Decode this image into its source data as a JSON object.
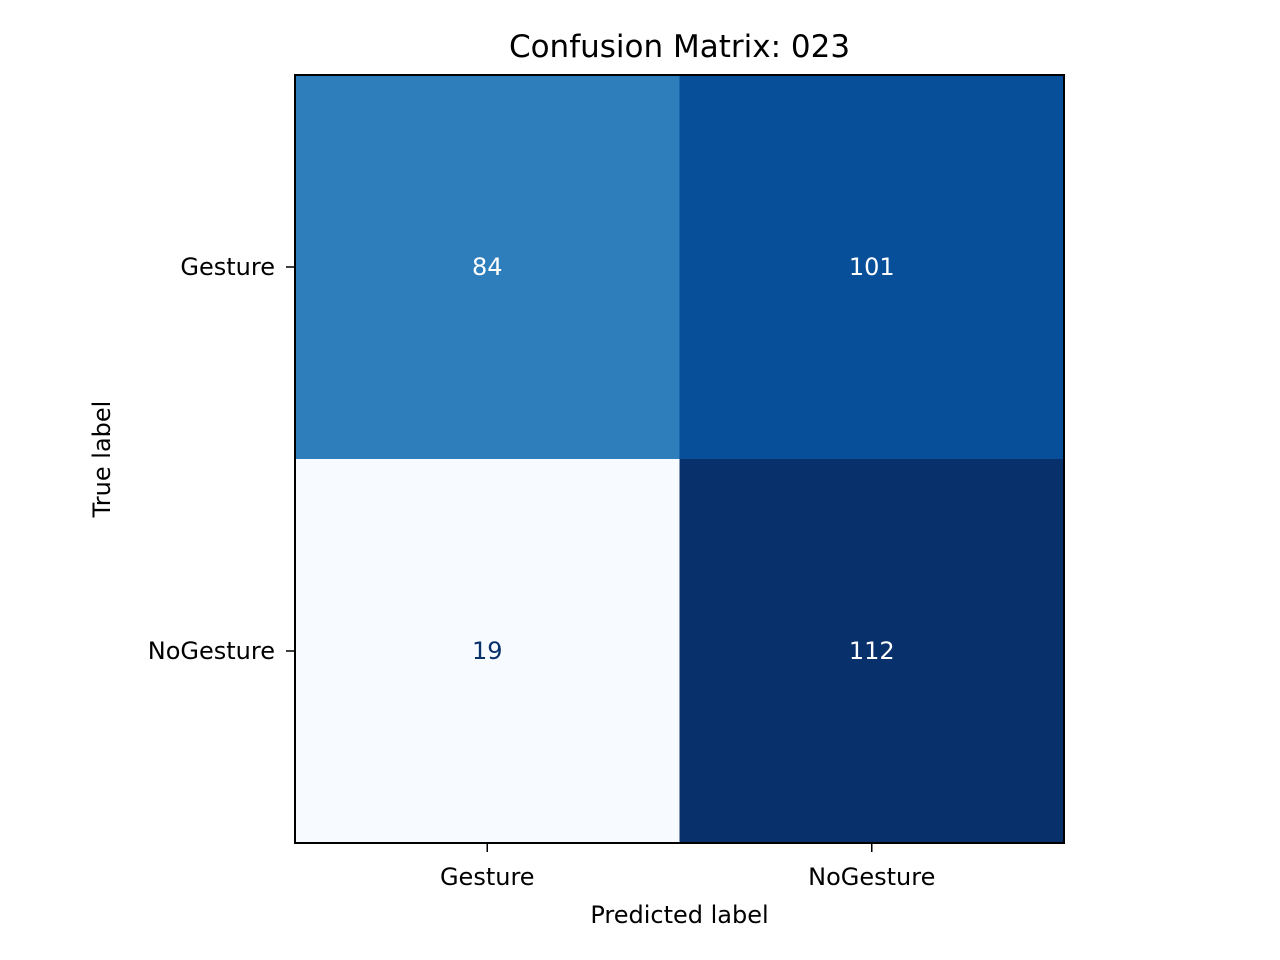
{
  "chart_data": {
    "type": "heatmap",
    "title": "Confusion Matrix: 023",
    "xlabel": "Predicted label",
    "ylabel": "True label",
    "x_categories": [
      "Gesture",
      "NoGesture"
    ],
    "y_categories": [
      "Gesture",
      "NoGesture"
    ],
    "matrix": [
      [
        84,
        101
      ],
      [
        19,
        112
      ]
    ],
    "colormap": "Blues",
    "color_range": [
      19,
      112
    ],
    "grid": false,
    "colors": {
      "low": "#f7fbff",
      "high": "#08306b",
      "text_on_dark": "#ffffff",
      "text_on_light": "#08306b"
    }
  }
}
